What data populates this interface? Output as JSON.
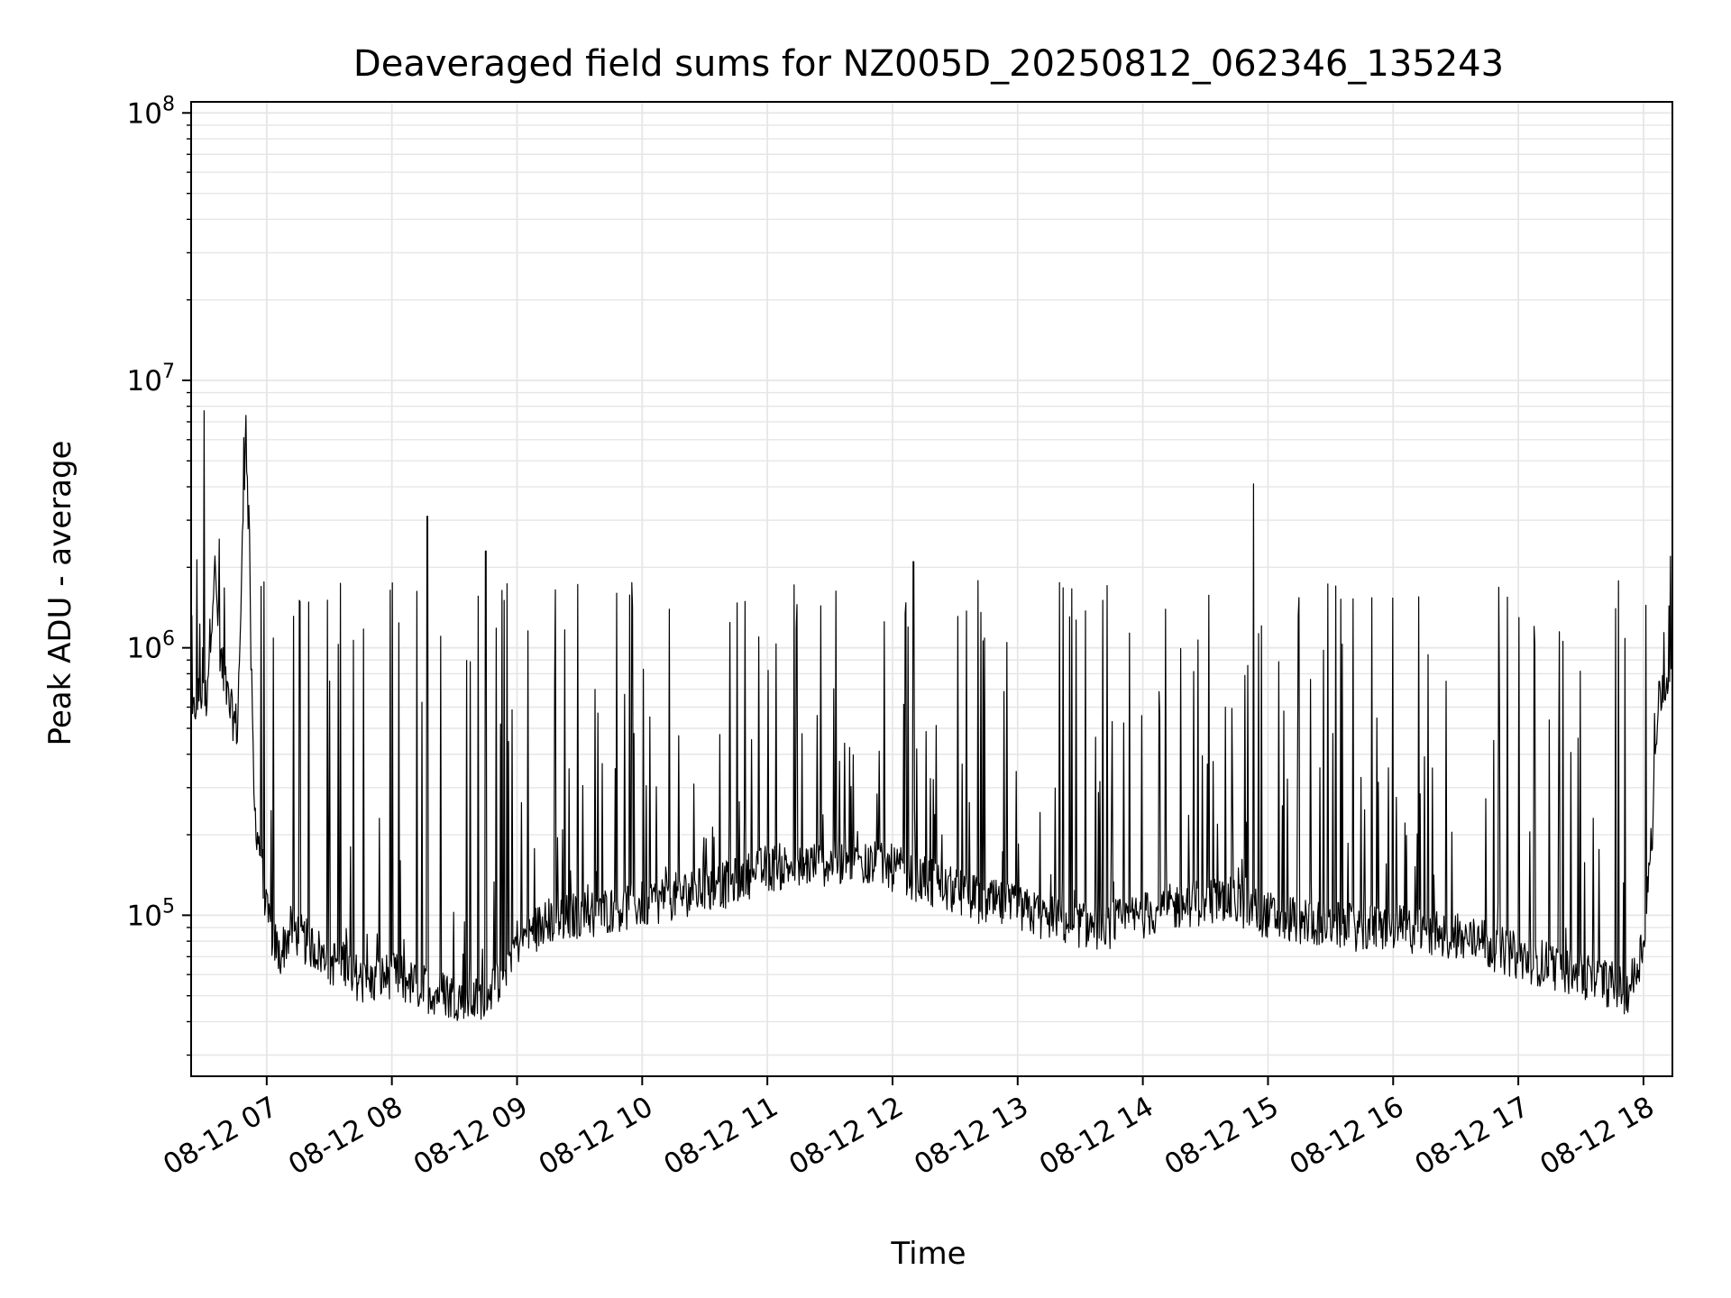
{
  "chart_data": {
    "type": "line",
    "title": "Deaveraged field sums for NZ005D_20250812_062346_135243",
    "xlabel": "Time",
    "ylabel": "Peak ADU - average",
    "y_scale": "log",
    "ylim": [
      25000,
      110000000
    ],
    "xlim": [
      "2025-08-12 06:23:46",
      "2025-08-12 18:13:52"
    ],
    "grid": true,
    "line_color": "#000000",
    "grid_color": "#e6e6e6",
    "x_ticks": [
      {
        "x": "2025-08-12 07:00",
        "label": "08-12 07"
      },
      {
        "x": "2025-08-12 08:00",
        "label": "08-12 08"
      },
      {
        "x": "2025-08-12 09:00",
        "label": "08-12 09"
      },
      {
        "x": "2025-08-12 10:00",
        "label": "08-12 10"
      },
      {
        "x": "2025-08-12 11:00",
        "label": "08-12 11"
      },
      {
        "x": "2025-08-12 12:00",
        "label": "08-12 12"
      },
      {
        "x": "2025-08-12 13:00",
        "label": "08-12 13"
      },
      {
        "x": "2025-08-12 14:00",
        "label": "08-12 14"
      },
      {
        "x": "2025-08-12 15:00",
        "label": "08-12 15"
      },
      {
        "x": "2025-08-12 16:00",
        "label": "08-12 16"
      },
      {
        "x": "2025-08-12 17:00",
        "label": "08-12 17"
      },
      {
        "x": "2025-08-12 18:00",
        "label": "08-12 18"
      }
    ],
    "y_ticks": [
      {
        "value": 100000,
        "base": "10",
        "exp": "5"
      },
      {
        "value": 1000000,
        "base": "10",
        "exp": "6"
      },
      {
        "value": 10000000,
        "base": "10",
        "exp": "7"
      },
      {
        "value": 100000000,
        "base": "10",
        "exp": "8"
      }
    ],
    "x": [
      "2025-08-12 06:23",
      "2025-08-12 06:27",
      "2025-08-12 06:31",
      "2025-08-12 06:35",
      "2025-08-12 06:38",
      "2025-08-12 06:42",
      "2025-08-12 06:46",
      "2025-08-12 06:50",
      "2025-08-12 06:54",
      "2025-08-12 06:58",
      "2025-08-12 07:00",
      "2025-08-12 07:06",
      "2025-08-12 07:12",
      "2025-08-12 07:18",
      "2025-08-12 07:24",
      "2025-08-12 07:30",
      "2025-08-12 07:36",
      "2025-08-12 07:42",
      "2025-08-12 07:48",
      "2025-08-12 07:54",
      "2025-08-12 08:00",
      "2025-08-12 08:10",
      "2025-08-12 08:20",
      "2025-08-12 08:30",
      "2025-08-12 08:40",
      "2025-08-12 08:50",
      "2025-08-12 09:00",
      "2025-08-12 09:15",
      "2025-08-12 09:30",
      "2025-08-12 09:45",
      "2025-08-12 10:00",
      "2025-08-12 10:20",
      "2025-08-12 10:40",
      "2025-08-12 11:00",
      "2025-08-12 11:20",
      "2025-08-12 11:40",
      "2025-08-12 12:00",
      "2025-08-12 12:20",
      "2025-08-12 12:40",
      "2025-08-12 13:00",
      "2025-08-12 13:20",
      "2025-08-12 13:40",
      "2025-08-12 14:00",
      "2025-08-12 14:20",
      "2025-08-12 14:40",
      "2025-08-12 15:00",
      "2025-08-12 15:20",
      "2025-08-12 15:40",
      "2025-08-12 16:00",
      "2025-08-12 16:20",
      "2025-08-12 16:40",
      "2025-08-12 17:00",
      "2025-08-12 17:15",
      "2025-08-12 17:30",
      "2025-08-12 17:45",
      "2025-08-12 17:52",
      "2025-08-12 17:56",
      "2025-08-12 18:00",
      "2025-08-12 18:04",
      "2025-08-12 18:08",
      "2025-08-12 18:13"
    ],
    "y": [
      450000,
      700000,
      650000,
      2000000,
      900000,
      600000,
      500000,
      7400000,
      250000,
      150000,
      100000,
      70000,
      90000,
      80000,
      75000,
      65000,
      70000,
      60000,
      55000,
      58000,
      60000,
      55000,
      52000,
      50000,
      48000,
      55000,
      80000,
      95000,
      100000,
      105000,
      110000,
      120000,
      130000,
      150000,
      155000,
      160000,
      150000,
      130000,
      115000,
      105000,
      95000,
      90000,
      100000,
      110000,
      115000,
      100000,
      95000,
      90000,
      90000,
      85000,
      80000,
      70000,
      65000,
      60000,
      55000,
      52000,
      60000,
      80000,
      200000,
      700000,
      850000
    ],
    "notes": [
      "Series is dense and noisy: a sample roughly every few seconds, with frequent spikes of 3e5 to 2e6 above the baseline.",
      "Notable peaks: ~7.7e6 near 06:30, ~7.4e6 near 06:50, ~3.1e6 near 08:17, ~2.3e6 near 08:45, ~2.1e6 near 12:10, ~4.1e6 near 14:53, ~2.2e6 near 18:13."
    ]
  }
}
